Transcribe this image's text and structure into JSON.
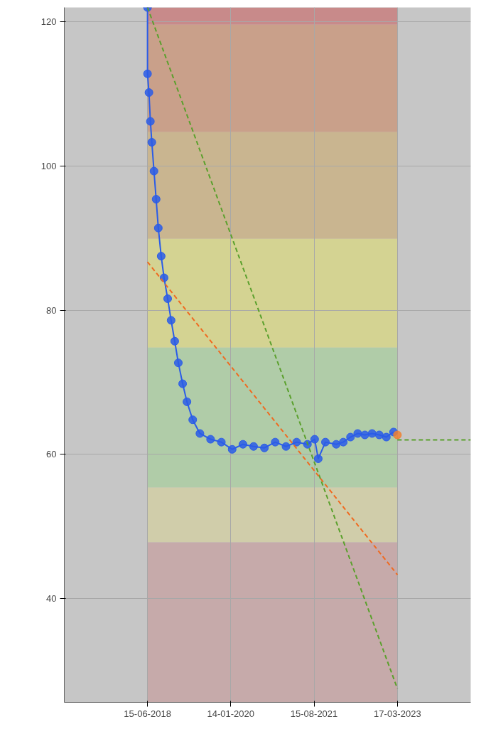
{
  "chart_data": {
    "type": "line",
    "marker": "circle",
    "grid": true,
    "xlim": [
      "2016-11-14",
      "2024-08-07"
    ],
    "ylim": [
      25.6,
      122
    ],
    "xticks": [
      {
        "value": "2018-06-15",
        "label": "15-06-2018"
      },
      {
        "value": "2020-01-14",
        "label": "14-01-2020"
      },
      {
        "value": "2021-08-15",
        "label": "15-08-2021"
      },
      {
        "value": "2023-03-17",
        "label": "17-03-2023"
      }
    ],
    "yticks": [
      40,
      60,
      80,
      100,
      120
    ],
    "bands": [
      {
        "axis": "y",
        "from": 119.6,
        "to": 122,
        "color": "#c88a8a"
      },
      {
        "axis": "y",
        "from": 104.7,
        "to": 119.6,
        "color": "#c9a08a"
      },
      {
        "axis": "y",
        "from": 89.9,
        "to": 104.7,
        "color": "#c9b590"
      },
      {
        "axis": "y",
        "from": 74.8,
        "to": 89.9,
        "color": "#d4d392"
      },
      {
        "axis": "y",
        "from": 55.4,
        "to": 74.8,
        "color": "#b0cca8"
      },
      {
        "axis": "y",
        "from": 47.8,
        "to": 55.4,
        "color": "#d0cdaa"
      },
      {
        "axis": "y",
        "from": 25.6,
        "to": 47.8,
        "color": "#c6aaaa"
      }
    ],
    "series": [
      {
        "color": "#2a5ce8",
        "x": [
          "2018-06-15",
          "2018-06-15",
          "2018-06-25",
          "2018-07-05",
          "2018-07-15",
          "2018-07-30",
          "2018-08-14",
          "2018-08-29",
          "2018-09-18",
          "2018-10-08",
          "2018-11-02",
          "2018-11-26",
          "2018-12-21",
          "2019-01-15",
          "2019-02-14",
          "2019-03-16",
          "2019-04-25",
          "2019-06-14",
          "2019-08-27",
          "2019-11-10",
          "2020-01-24",
          "2020-04-08",
          "2020-06-21",
          "2020-09-04",
          "2020-11-18",
          "2021-02-01",
          "2021-04-16",
          "2021-06-30",
          "2021-08-19",
          "2021-09-13",
          "2021-11-02",
          "2022-01-16",
          "2022-03-06",
          "2022-04-25",
          "2022-06-14",
          "2022-08-03",
          "2022-09-22",
          "2022-11-11",
          "2022-12-30",
          "2023-02-18"
        ],
        "values": [
          122,
          112.8,
          110.2,
          106.2,
          103.3,
          99.3,
          95.4,
          91.4,
          87.5,
          84.5,
          81.6,
          78.6,
          75.7,
          72.7,
          69.8,
          67.3,
          64.8,
          62.9,
          62.1,
          61.7,
          60.7,
          61.4,
          61.1,
          60.9,
          61.7,
          61.1,
          61.7,
          61.4,
          62.1,
          59.4,
          61.7,
          61.4,
          61.7,
          62.4,
          62.9,
          62.7,
          62.9,
          62.7,
          62.4,
          63.1
        ]
      },
      {
        "type": "scatter",
        "color": "#f08030",
        "marker": "circle",
        "x": [
          "2023-03-17"
        ],
        "values": [
          62.7
        ]
      },
      {
        "type": "line",
        "color": "#5aa02c",
        "marker": "none",
        "line_style": "dashed",
        "x": [
          "2018-06-15",
          "2023-03-17"
        ],
        "values": [
          122,
          27.5
        ]
      },
      {
        "type": "line",
        "color": "#5aa02c",
        "marker": "none",
        "line_style": "dashed",
        "x": [
          "2023-03-17",
          "2024-08-07"
        ],
        "values": [
          62,
          62
        ]
      },
      {
        "type": "line",
        "color": "#f06a20",
        "marker": "none",
        "line_style": "dashed",
        "x": [
          "2018-06-15",
          "2023-03-17"
        ],
        "values": [
          86.7,
          43.3
        ]
      }
    ]
  }
}
